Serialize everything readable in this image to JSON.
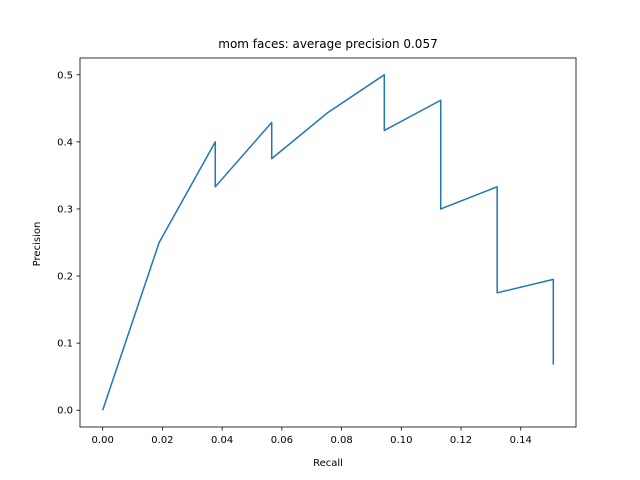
{
  "chart_data": {
    "type": "line",
    "title": "mom faces: average precision 0.057",
    "xlabel": "Recall",
    "ylabel": "Precision",
    "xlim": [
      -0.0076,
      0.1585
    ],
    "ylim": [
      -0.025,
      0.525
    ],
    "grid": false,
    "x_ticks": [
      0.0,
      0.02,
      0.04,
      0.06,
      0.08,
      0.1,
      0.12,
      0.14
    ],
    "x_tick_labels": [
      "0.00",
      "0.02",
      "0.04",
      "0.06",
      "0.08",
      "0.10",
      "0.12",
      "0.14"
    ],
    "y_ticks": [
      0.0,
      0.1,
      0.2,
      0.3,
      0.4,
      0.5
    ],
    "y_tick_labels": [
      "0.0",
      "0.1",
      "0.2",
      "0.3",
      "0.4",
      "0.5"
    ],
    "series": [
      {
        "color": "#1f77b4",
        "x": [
          0.0,
          0.0189,
          0.0377,
          0.0377,
          0.0566,
          0.0566,
          0.0755,
          0.0943,
          0.0943,
          0.1132,
          0.1132,
          0.1321,
          0.1321,
          0.1509,
          0.1509
        ],
        "y": [
          0.0,
          0.25,
          0.4,
          0.333,
          0.429,
          0.375,
          0.444,
          0.5,
          0.417,
          0.462,
          0.3,
          0.333,
          0.175,
          0.195,
          0.068
        ]
      }
    ]
  }
}
